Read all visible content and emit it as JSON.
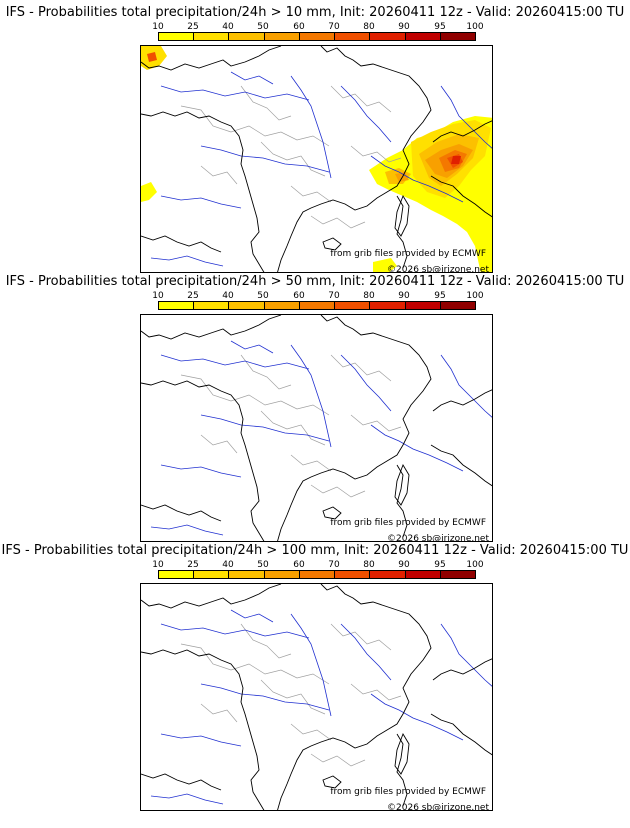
{
  "panels": [
    {
      "title": "IFS - Probabilities total precipitation/24h > 10 mm, Init: 20260411 12z - Valid: 20260415:00 TU",
      "precip_shown": true
    },
    {
      "title": "IFS - Probabilities total precipitation/24h > 50 mm, Init: 20260411 12z - Valid: 20260415:00 TU",
      "precip_shown": false
    },
    {
      "title": "IFS - Probabilities total precipitation/24h > 100 mm, Init: 20260411 12z - Valid: 20260415:00 TU",
      "precip_shown": false
    }
  ],
  "scale": {
    "labels": [
      "10",
      "25",
      "40",
      "50",
      "60",
      "70",
      "80",
      "90",
      "95",
      "100"
    ],
    "colors": [
      "#ffff00",
      "#ffe000",
      "#fcc000",
      "#f8a000",
      "#f47800",
      "#f05000",
      "#e02000",
      "#c00000",
      "#900000",
      "#600000"
    ]
  },
  "credits": {
    "grib": "from grib files provided by ECMWF",
    "copyright": "©2026 sb@irizone.net"
  },
  "map_colors": {
    "coast": "#000000",
    "rivers": "#2030d0",
    "borders": "#a0a0a0"
  }
}
